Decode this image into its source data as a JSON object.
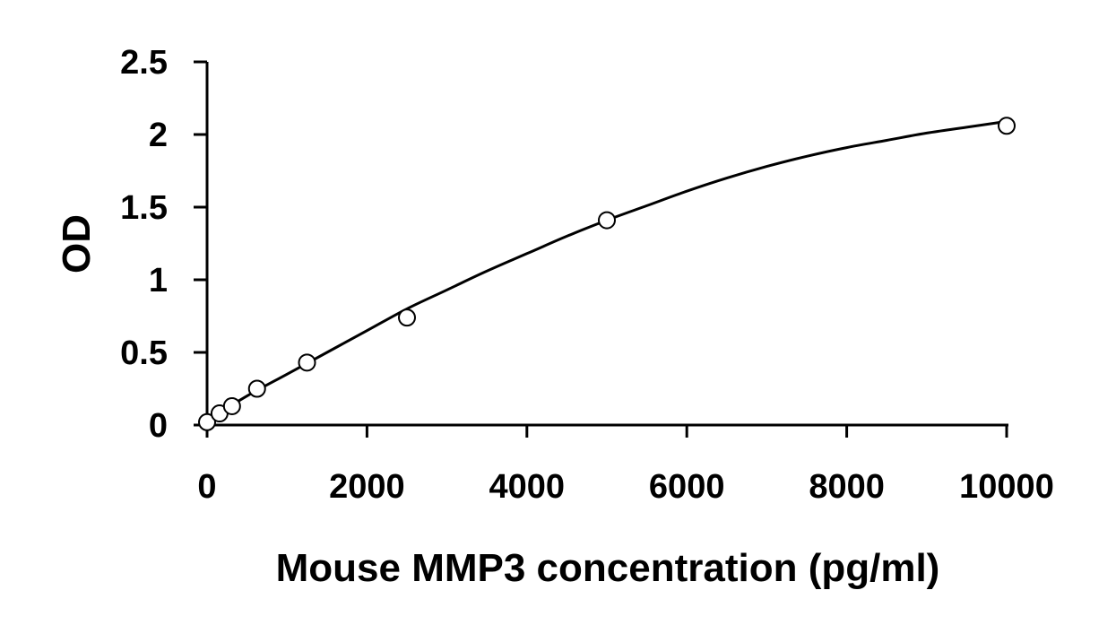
{
  "chart_data": {
    "type": "scatter",
    "title": "",
    "xlabel": "Mouse MMP3 concentration (pg/ml)",
    "ylabel": "OD",
    "xlim": [
      0,
      10000
    ],
    "ylim": [
      0,
      2.5
    ],
    "x_ticks": [
      0,
      2000,
      4000,
      6000,
      8000,
      10000
    ],
    "x_tick_labels": [
      "0",
      "2000",
      "4000",
      "6000",
      "8000",
      "10000"
    ],
    "y_ticks": [
      0,
      0.5,
      1,
      1.5,
      2,
      2.5
    ],
    "y_tick_labels": [
      "0",
      "0.5",
      "1",
      "1.5",
      "2",
      "2.5"
    ],
    "grid": false,
    "legend": "none",
    "series": [
      {
        "marker": "open-circle",
        "x": [
          0,
          156,
          312,
          625,
          1250,
          2500,
          5000,
          10000
        ],
        "y": [
          0.02,
          0.08,
          0.13,
          0.25,
          0.43,
          0.74,
          1.41,
          2.06
        ]
      }
    ],
    "fit_curve": {
      "style": "smooth-line",
      "x": [
        0,
        500,
        1000,
        1500,
        2000,
        2500,
        3000,
        3500,
        4000,
        4500,
        5000,
        5500,
        6000,
        6500,
        7000,
        7500,
        8000,
        8500,
        9000,
        9500,
        10000
      ],
      "y": [
        0.03,
        0.2,
        0.35,
        0.5,
        0.65,
        0.8,
        0.93,
        1.06,
        1.18,
        1.3,
        1.41,
        1.51,
        1.61,
        1.7,
        1.78,
        1.85,
        1.91,
        1.96,
        2.01,
        2.05,
        2.09
      ]
    },
    "colors": {
      "axis": "#000000",
      "marker_stroke": "#000000",
      "marker_fill": "#ffffff",
      "curve": "#000000"
    }
  }
}
